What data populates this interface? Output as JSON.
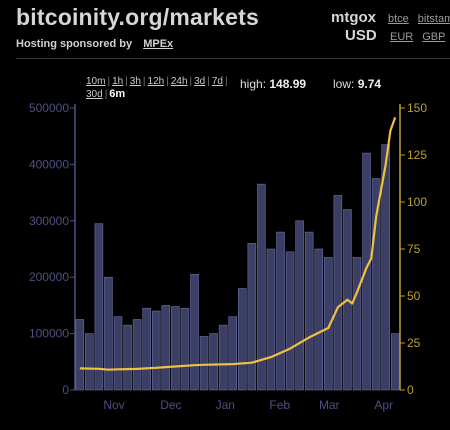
{
  "header": {
    "site_title": "bitcoinity.org/markets",
    "sponsor_label": "Hosting sponsored by",
    "sponsor_link": "MPEx"
  },
  "exchange": {
    "selected": "mtgox",
    "currency": "USD",
    "other_exchanges": [
      "btce",
      "bitstam"
    ],
    "other_currencies": [
      "EUR",
      "GBP"
    ]
  },
  "time_ranges": {
    "options": [
      "10m",
      "1h",
      "3h",
      "12h",
      "24h",
      "3d",
      "7d",
      "30d"
    ],
    "active": "6m"
  },
  "stats": {
    "high_label": "high:",
    "high_value": "148.99",
    "low_label": "low:",
    "low_value": "9.74"
  },
  "colors": {
    "bar_fill": "#3b3f66",
    "bar_stroke": "#6a6f9e",
    "price_line": "#f0c040",
    "left_axis": "#4d5080",
    "right_axis": "#b8a030"
  },
  "chart_data": {
    "type": "bar",
    "bar_series": {
      "values": [
        125000,
        100000,
        295000,
        200000,
        130000,
        115000,
        125000,
        145000,
        140000,
        150000,
        148000,
        145000,
        205000,
        95000,
        100000,
        115000,
        130000,
        180000,
        260000,
        365000,
        250000,
        280000,
        245000,
        300000,
        280000,
        250000,
        235000,
        345000,
        320000,
        235000,
        420000,
        375000,
        435000,
        100000
      ],
      "ylim": [
        0,
        500000
      ],
      "yticks": [
        "0",
        "100000",
        "200000",
        "300000",
        "400000",
        "500000"
      ]
    },
    "line_series": {
      "points": [
        [
          0,
          11.5
        ],
        [
          2,
          11.3
        ],
        [
          3,
          10.8
        ],
        [
          4,
          11.0
        ],
        [
          6,
          11.2
        ],
        [
          8,
          11.8
        ],
        [
          9,
          12.2
        ],
        [
          12,
          13.2
        ],
        [
          13,
          13.4
        ],
        [
          16,
          13.8
        ],
        [
          18,
          14.5
        ],
        [
          20,
          17.5
        ],
        [
          22,
          22
        ],
        [
          24,
          28
        ],
        [
          26,
          33
        ],
        [
          27,
          44
        ],
        [
          28,
          48
        ],
        [
          28.5,
          46
        ],
        [
          29,
          52
        ],
        [
          30,
          65
        ],
        [
          30.5,
          70
        ],
        [
          31,
          92
        ],
        [
          32,
          120
        ],
        [
          32.5,
          138
        ],
        [
          33,
          145
        ]
      ],
      "ylim": [
        0,
        150
      ],
      "yticks": [
        "0",
        "25",
        "50",
        "75",
        "100",
        "125",
        "150"
      ]
    },
    "x_labels": [
      {
        "label": "Nov",
        "index": 4.8
      },
      {
        "label": "Dec",
        "index": 11.8
      },
      {
        "label": "Jan",
        "index": 18.5
      },
      {
        "label": "Feb",
        "index": 25.2
      },
      {
        "label": "Mar",
        "index": 31.3
      },
      {
        "label": "Apr",
        "index": 38.0
      }
    ]
  }
}
